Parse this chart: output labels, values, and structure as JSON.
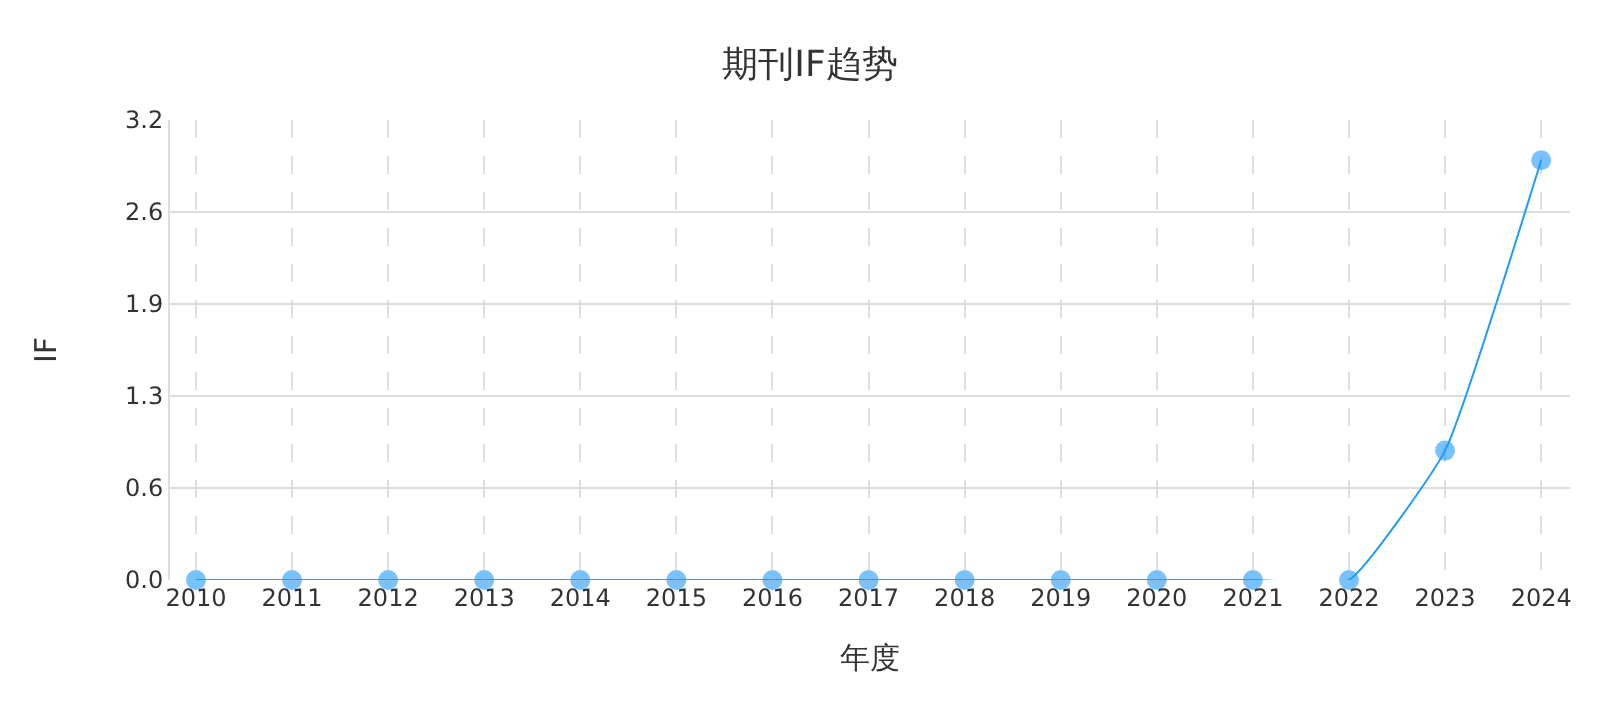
{
  "chart_data": {
    "type": "line",
    "title": "期刊IF趋势",
    "xlabel": "年度",
    "ylabel": "IF",
    "categories": [
      "2010",
      "2011",
      "2012",
      "2013",
      "2014",
      "2015",
      "2016",
      "2017",
      "2018",
      "2019",
      "2020",
      "2021",
      "2022",
      "2023",
      "2024"
    ],
    "series": [
      {
        "color": "#1e9bff",
        "values": [
          0,
          0,
          0,
          0,
          0,
          0,
          0,
          0,
          0,
          0,
          0,
          0,
          0,
          0.9,
          2.92
        ]
      }
    ],
    "ylim": [
      0,
      3.2
    ],
    "yticks": [
      {
        "value": 0,
        "label": "0.0"
      },
      {
        "value": 0.64,
        "label": "0.6"
      },
      {
        "value": 1.28,
        "label": "1.3"
      },
      {
        "value": 1.92,
        "label": "1.9"
      },
      {
        "value": 2.56,
        "label": "2.6"
      },
      {
        "value": 3.2,
        "label": "3.2"
      }
    ],
    "grid": true,
    "marker": "circle",
    "line_style": "solid",
    "legend": false
  }
}
